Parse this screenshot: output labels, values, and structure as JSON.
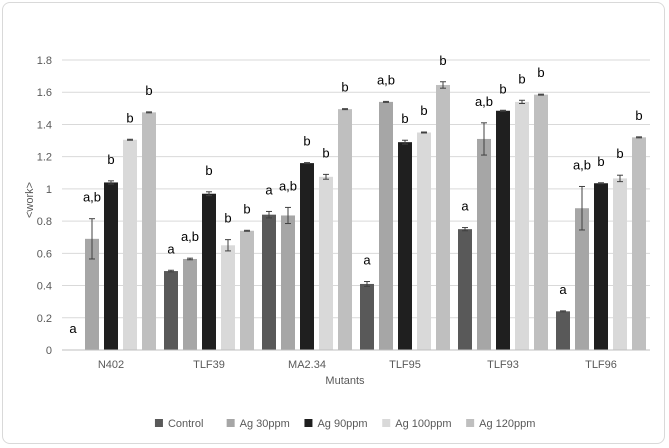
{
  "chart_data": {
    "type": "bar",
    "xlabel": "Mutants",
    "ylabel": "<work>",
    "ylim": [
      0,
      1.8
    ],
    "ytick_step": 0.2,
    "ytick_labels": [
      "0",
      "0.2",
      "0.4",
      "0.6",
      "0.8",
      "1",
      "1.2",
      "1.4",
      "1.6",
      "1.8"
    ],
    "grid": true,
    "legend_position": "bottom",
    "categories": [
      "N402",
      "TLF39",
      "MA2.34",
      "TLF95",
      "TLF93",
      "TLF96"
    ],
    "series": [
      {
        "name": "Control",
        "color": "#595959",
        "values": [
          0.0,
          0.49,
          0.84,
          0.41,
          0.75,
          0.24
        ],
        "errors": [
          0.0,
          0.005,
          0.02,
          0.015,
          0.01,
          0.003
        ],
        "labels": [
          "a",
          "a",
          "a",
          "a",
          "a",
          "a"
        ]
      },
      {
        "name": "Ag 30ppm",
        "color": "#a6a6a6",
        "values": [
          0.69,
          0.565,
          0.835,
          1.54,
          1.31,
          0.88
        ],
        "errors": [
          0.125,
          0.005,
          0.05,
          0.003,
          0.1,
          0.135
        ],
        "labels": [
          "a,b",
          "a,b",
          "a,b",
          "a,b",
          "a,b",
          "a,b"
        ]
      },
      {
        "name": "Ag 90ppm",
        "color": "#1f1f1f",
        "values": [
          1.04,
          0.97,
          1.16,
          1.29,
          1.485,
          1.035
        ],
        "errors": [
          0.01,
          0.012,
          0.003,
          0.012,
          0.003,
          0.003
        ],
        "labels": [
          "b",
          "b",
          "b",
          "b",
          "b",
          "b"
        ]
      },
      {
        "name": "Ag 100ppm",
        "color": "#d9d9d9",
        "values": [
          1.305,
          0.65,
          1.075,
          1.35,
          1.54,
          1.065
        ],
        "errors": [
          0.003,
          0.035,
          0.015,
          0.003,
          0.01,
          0.02
        ],
        "labels": [
          "b",
          "b",
          "b",
          "b",
          "b",
          "b"
        ]
      },
      {
        "name": "Ag 120ppm",
        "color": "#bfbfbf",
        "values": [
          1.475,
          0.74,
          1.495,
          1.645,
          1.585,
          1.32
        ],
        "errors": [
          0.003,
          0.003,
          0.003,
          0.02,
          0.003,
          0.003
        ],
        "labels": [
          "b",
          "b",
          "b",
          "b",
          "b",
          "b"
        ]
      }
    ]
  }
}
